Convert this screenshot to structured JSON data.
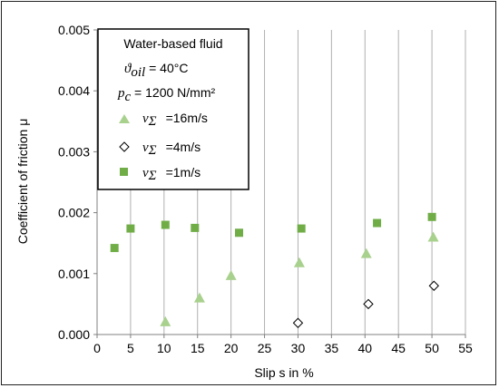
{
  "chart_data": {
    "type": "scatter",
    "xlabel": "Slip s in %",
    "ylabel": "Coefficient of friction μ",
    "xlim": [
      0,
      55
    ],
    "ylim": [
      0,
      0.005
    ],
    "x_ticks": [
      "0",
      "5",
      "10",
      "15",
      "20",
      "25",
      "30",
      "35",
      "40",
      "45",
      "50",
      "55"
    ],
    "y_ticks": [
      "0.000",
      "0.001",
      "0.002",
      "0.003",
      "0.004",
      "0.005"
    ],
    "grid": "vertical lines",
    "legend": {
      "placement": "top-left",
      "title": "Water-based fluid",
      "line_oil": {
        "symbol": "ϑ",
        "sub": "oil",
        "value": " = 40°C"
      },
      "line_pressure": {
        "symbol": "p",
        "sub": "c",
        "value": " = 1200 N/mm²"
      }
    },
    "series": [
      {
        "name": "=16m/s",
        "label_symbol": "v",
        "label_sub": "Σ",
        "marker": "triangle",
        "color": "#a9d18e",
        "points": [
          [
            10.2,
            0.00021
          ],
          [
            15.3,
            0.0006
          ],
          [
            20.0,
            0.00097
          ],
          [
            30.2,
            0.00118
          ],
          [
            40.2,
            0.00133
          ],
          [
            50.2,
            0.0016
          ]
        ]
      },
      {
        "name": "=4m/s",
        "label_symbol": "v",
        "label_sub": "Σ",
        "marker": "diamond",
        "color": "#000000",
        "points": [
          [
            30.0,
            0.00019
          ],
          [
            40.5,
            0.0005
          ],
          [
            50.3,
            0.0008
          ]
        ]
      },
      {
        "name": "=1m/s",
        "label_symbol": "v",
        "label_sub": "Σ",
        "marker": "square",
        "color": "#70ad47",
        "points": [
          [
            2.6,
            0.00142
          ],
          [
            5.0,
            0.00174
          ],
          [
            10.2,
            0.0018
          ],
          [
            14.6,
            0.00175
          ],
          [
            21.2,
            0.00167
          ],
          [
            30.5,
            0.00174
          ],
          [
            41.8,
            0.00183
          ],
          [
            50.0,
            0.00193
          ]
        ]
      }
    ]
  }
}
